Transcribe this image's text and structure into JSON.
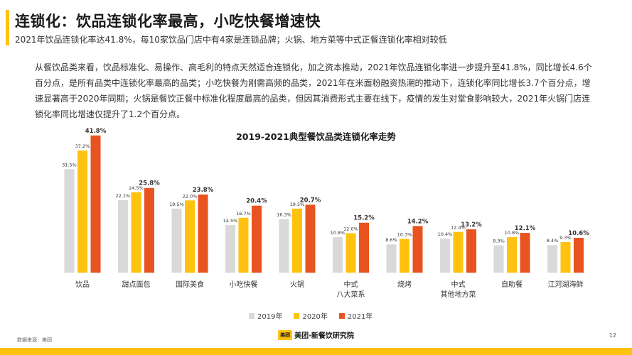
{
  "header": {
    "title": "连锁化：饮品连锁化率最高，小吃快餐增速快",
    "subtitle": "2021年饮品连锁化率达41.8%，每10家饮品门店中有4家是连锁品牌；火锅、地方菜等中式正餐连锁化率相对较低"
  },
  "body_text": "从餐饮品类来看，饮品标准化、易操作、高毛利的特点天然适合连锁化，加之资本推动，2021年饮品连锁化率进一步提升至41.8%，同比增长4.6个百分点，是所有品类中连锁化率最高的品类；小吃快餐为刚需高频的品类，2021年在米面粉融资热潮的推动下，连锁化率同比增长3.7个百分点，增速显著高于2020年同期；火锅是餐饮正餐中标准化程度最高的品类，但因其消费形式主要在线下，疫情的发生对堂食影响较大，2021年火锅门店连锁化率同比增速仅提升了1.2个百分点。",
  "chart_title": "2019-2021典型餐饮品类连锁化率走势",
  "chart_data": {
    "type": "bar",
    "title": "2019-2021典型餐饮品类连锁化率走势",
    "categories": [
      [
        "饮品"
      ],
      [
        "甜点面包"
      ],
      [
        "国际美食"
      ],
      [
        "小吃快餐"
      ],
      [
        "火锅"
      ],
      [
        "中式",
        "八大菜系"
      ],
      [
        "烧烤"
      ],
      [
        "中式",
        "其他地方菜"
      ],
      [
        "自助餐"
      ],
      [
        "江河湖海鲜"
      ]
    ],
    "series": [
      {
        "name": "2019年",
        "color": "#d9d9d9",
        "values": [
          31.5,
          22.1,
          19.5,
          14.5,
          16.3,
          10.8,
          8.6,
          10.4,
          8.3,
          8.4
        ],
        "labels": [
          "31.5%",
          "22.1%",
          "19.5%",
          "14.5%",
          "16.3%",
          "10.8%",
          "8.6%",
          "10.4%",
          "8.3%",
          "8.4%"
        ]
      },
      {
        "name": "2020年",
        "color": "#ffc20e",
        "values": [
          37.2,
          24.5,
          22.0,
          16.7,
          19.5,
          12.0,
          10.3,
          12.4,
          10.8,
          9.3
        ],
        "labels": [
          "37.2%",
          "24.5%",
          "22.0%",
          "16.7%",
          "19.5%",
          "12.0%",
          "10.3%",
          "12.4%",
          "10.8%",
          "9.3%"
        ]
      },
      {
        "name": "2021年",
        "color": "#e8531f",
        "values": [
          41.8,
          25.8,
          23.8,
          20.4,
          20.7,
          15.2,
          14.2,
          13.2,
          12.1,
          10.6
        ],
        "labels": [
          "41.8%",
          "25.8%",
          "23.8%",
          "20.4%",
          "20.7%",
          "15.2%",
          "14.2%",
          "13.2%",
          "12.1%",
          "10.6%"
        ]
      }
    ],
    "ylim": [
      0,
      45
    ],
    "unit": "%",
    "legend_position": "bottom-center",
    "grid": false
  },
  "footer": {
    "source": "数据来源：美团",
    "brand_logo": "美团",
    "brand_text": "美团·新餐饮研究院",
    "page_number": "12"
  }
}
